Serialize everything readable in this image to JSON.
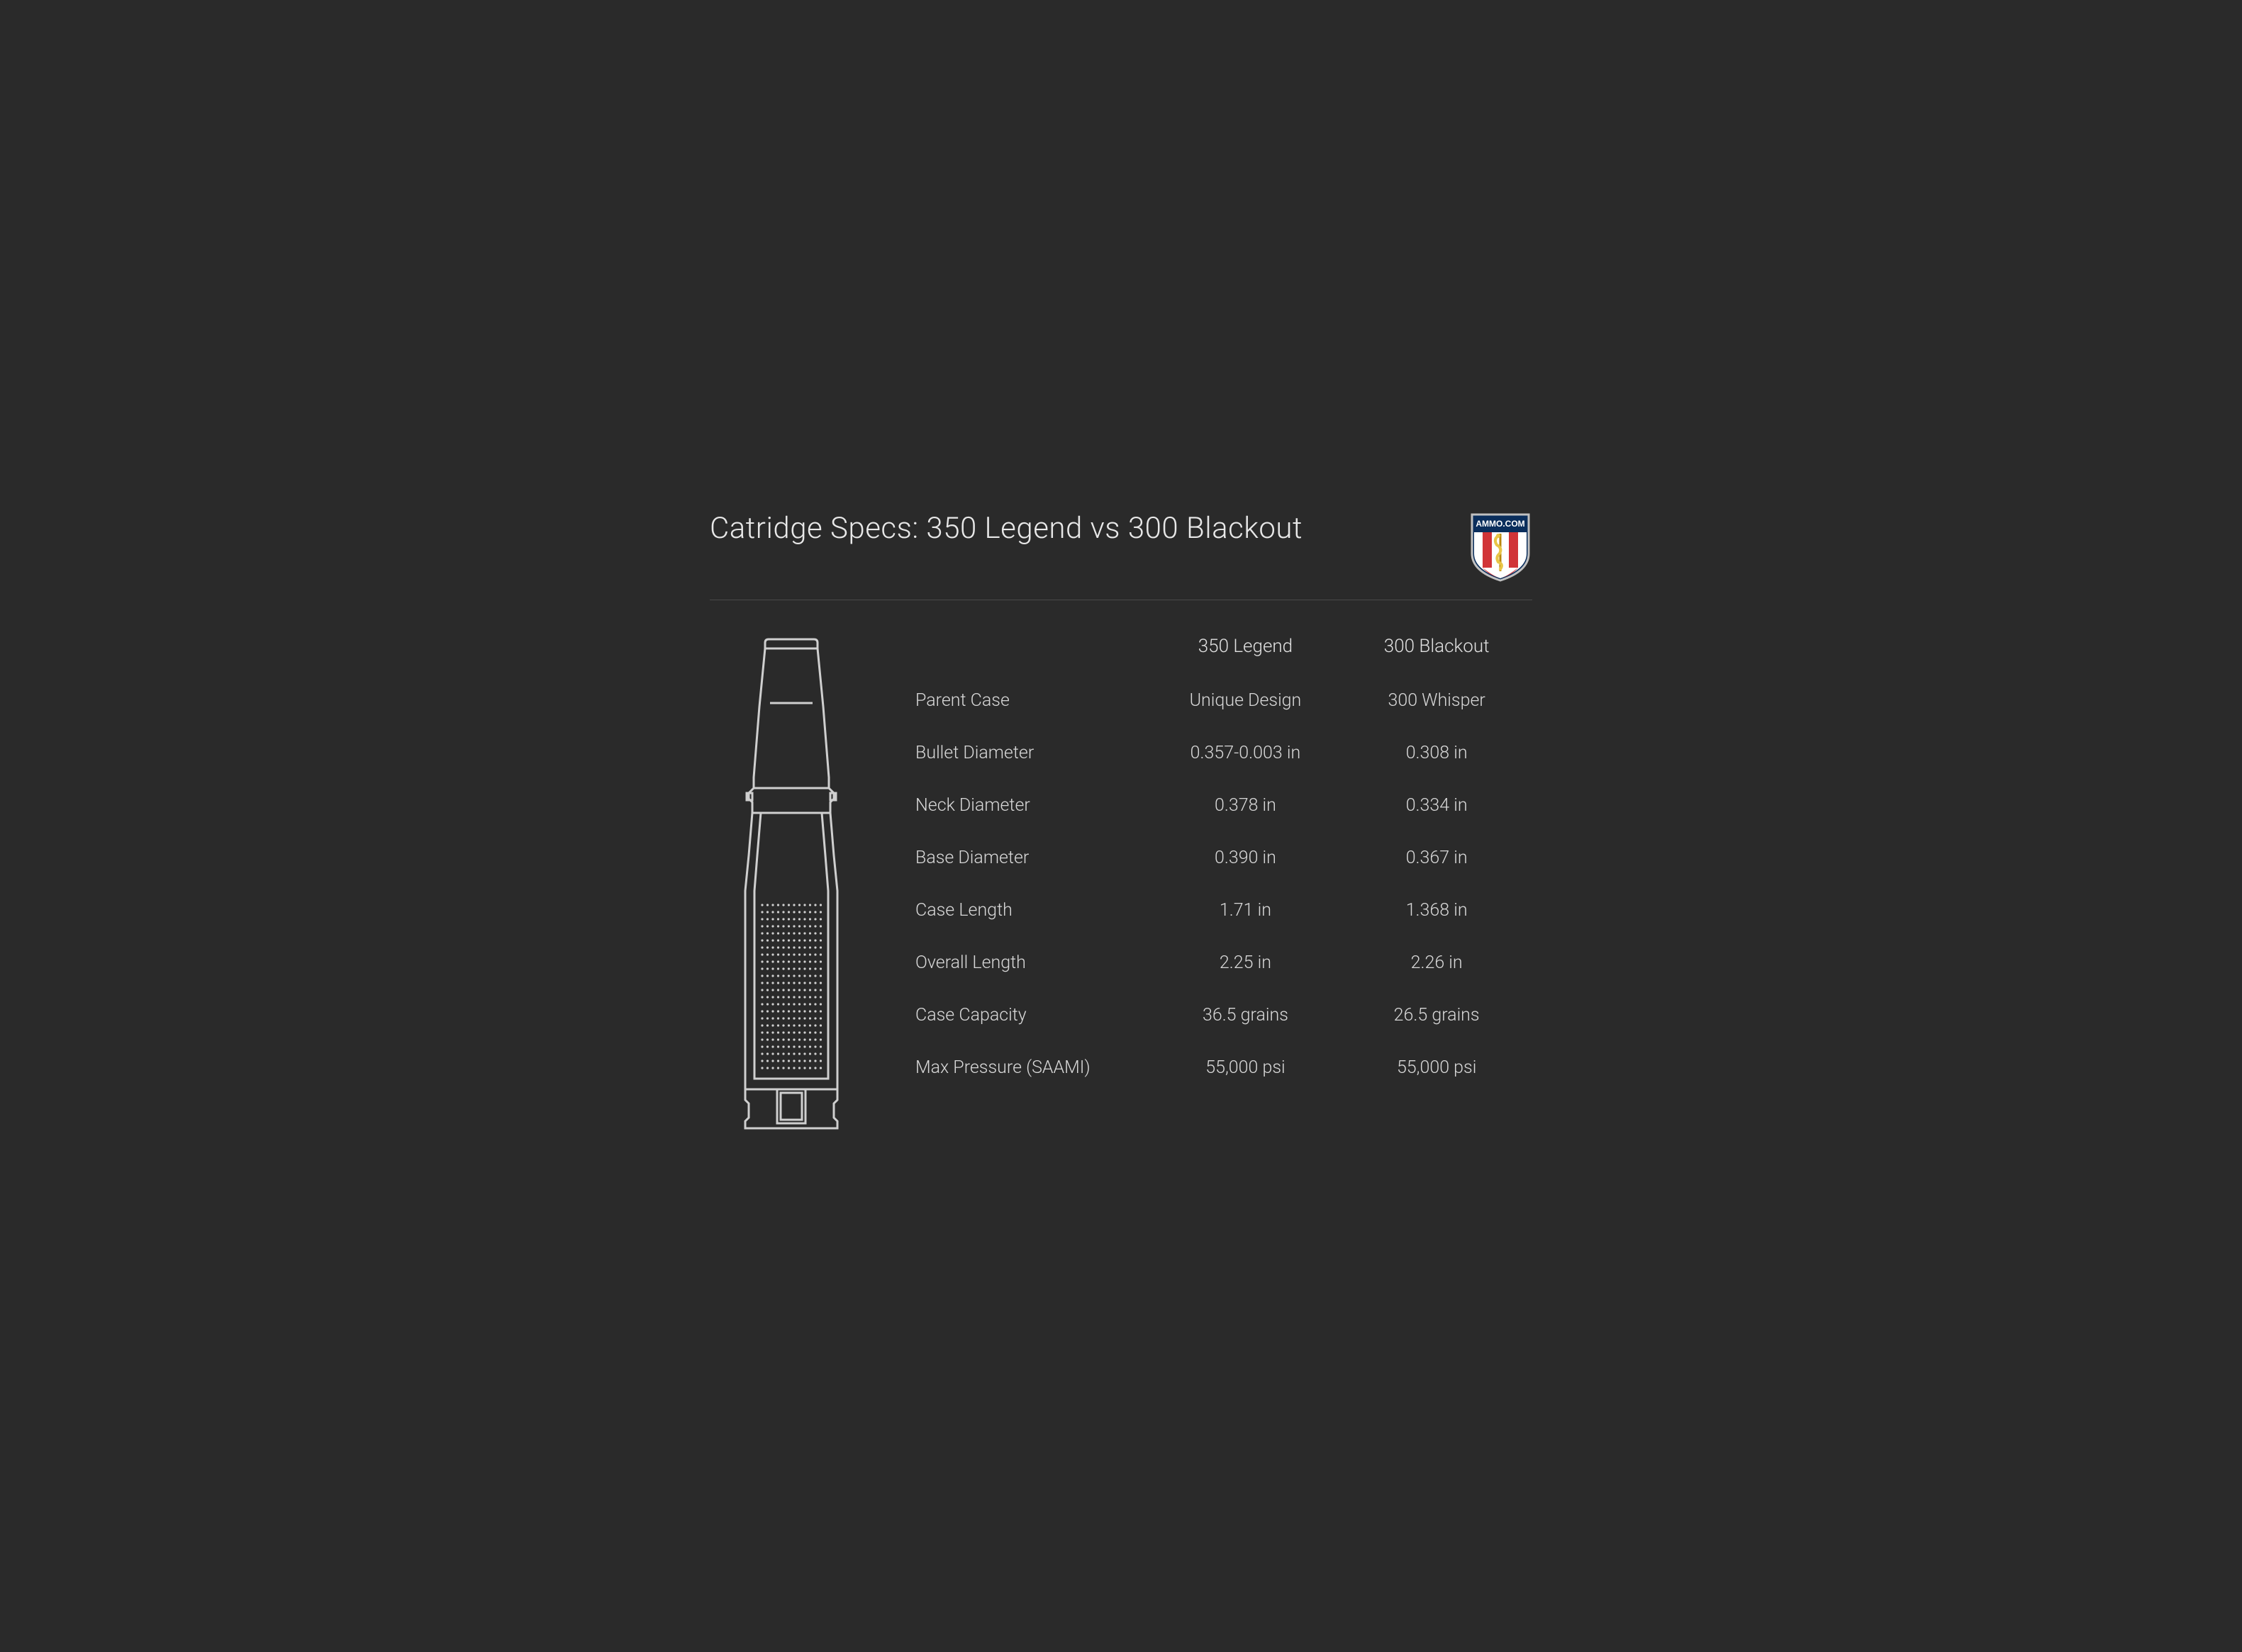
{
  "title": "Catridge Specs: 350 Legend vs 300 Blackout",
  "logo": {
    "text": "AMMO.COM",
    "shield_bg": "#0a2e5c",
    "stripe_red": "#d13438",
    "stripe_white": "#ffffff",
    "outline": "#c0c0c0",
    "snake_color": "#e8c547",
    "text_color": "#ffffff"
  },
  "columns": {
    "col1": "350 Legend",
    "col2": "300 Blackout"
  },
  "specs": [
    {
      "label": "Parent Case",
      "v1": "Unique Design",
      "v2": "300 Whisper"
    },
    {
      "label": "Bullet Diameter",
      "v1": "0.357-0.003 in",
      "v2": "0.308 in"
    },
    {
      "label": "Neck Diameter",
      "v1": "0.378 in",
      "v2": "0.334 in"
    },
    {
      "label": "Base Diameter",
      "v1": "0.390 in",
      "v2": "0.367 in"
    },
    {
      "label": "Case Length",
      "v1": "1.71 in",
      "v2": "1.368 in"
    },
    {
      "label": "Overall Length",
      "v1": "2.25 in",
      "v2": "2.26 in"
    },
    {
      "label": "Case Capacity",
      "v1": "36.5 grains",
      "v2": "26.5 grains"
    },
    {
      "label": "Max Pressure (SAAMI)",
      "v1": "55,000 psi",
      "v2": "55,000 psi"
    }
  ],
  "styling": {
    "background_color": "#2a2a2a",
    "title_color": "#e8e8e8",
    "title_fontsize": 42,
    "title_fontweight": 300,
    "divider_color": "#4a4a4a",
    "text_color": "#d8d8d8",
    "header_fontsize": 26,
    "cell_fontsize": 25,
    "cartridge_stroke": "#cfcfcf",
    "cartridge_stroke_width": 3,
    "powder_dot_color": "#cfcfcf"
  }
}
